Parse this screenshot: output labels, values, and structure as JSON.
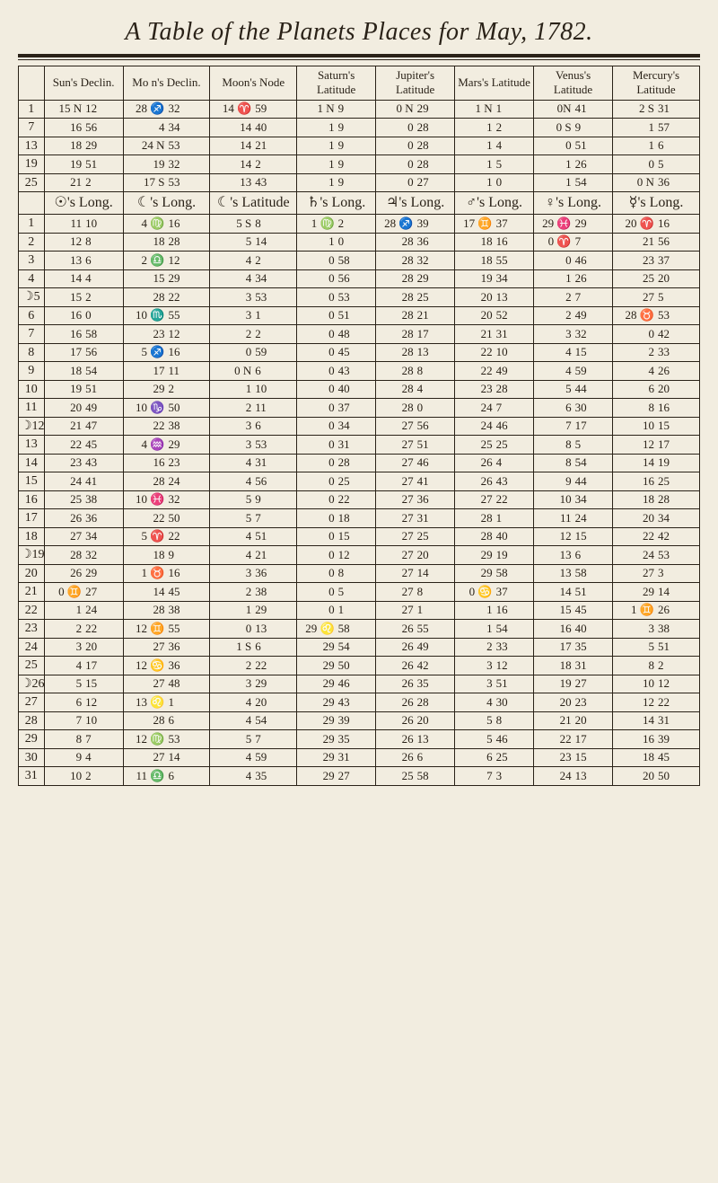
{
  "title": "A Table of the Planets Places for May, 1782.",
  "topHeaders": [
    "Sun's Declin.",
    "Mo n's Declin.",
    "Moon's Node",
    "Saturn's Latitude",
    "Jupiter's Latitude",
    "Mars's Latitude",
    "Venus's Latitude",
    "Mercury's Latitude"
  ],
  "symHeaders": [
    "☉'s Long.",
    "☾'s Long.",
    "☾'s Latitude",
    "♄'s Long.",
    "♃'s Long.",
    "♂'s Long.",
    "♀'s Long.",
    "☿'s Long."
  ],
  "upperDays": [
    "1",
    "7",
    "13",
    "19",
    "25"
  ],
  "upper": [
    [
      "15 N 12",
      "28 ♐ 32",
      "14 ♈ 59",
      "1 N 9",
      "0 N 29",
      "1 N 1",
      "0N 41",
      "2 S 31"
    ],
    [
      "16  56",
      "4  34",
      "14  40",
      "1  9",
      "0  28",
      "1  2",
      "0 S 9",
      "1  57"
    ],
    [
      "18  29",
      "24 N 53",
      "14  21",
      "1  9",
      "0  28",
      "1  4",
      "0  51",
      "1  6"
    ],
    [
      "19  51",
      "19  32",
      "14  2",
      "1  9",
      "0  28",
      "1  5",
      "1  26",
      "0  5"
    ],
    [
      "21  2",
      "17 S 53",
      "13  43",
      "1  9",
      "0  27",
      "1  0",
      "1  54",
      "0 N 36"
    ]
  ],
  "lowerDays": [
    "1",
    "2",
    "3",
    "4",
    "5",
    "6",
    "7",
    "8",
    "9",
    "10",
    "11",
    "12",
    "13",
    "14",
    "15",
    "16",
    "17",
    "18",
    "19",
    "20",
    "21",
    "22",
    "23",
    "24",
    "25",
    "26",
    "27",
    "28",
    "29",
    "30",
    "31"
  ],
  "lower": [
    [
      "11  10",
      "4 ♍ 16",
      "5 S 8",
      "1 ♍ 2",
      "28 ♐ 39",
      "17 ♊ 37",
      "29 ♓ 29",
      "20 ♈ 16"
    ],
    [
      "12  8",
      "18  28",
      "5  14",
      "1  0",
      "28  36",
      "18  16",
      "0 ♈ 7",
      "21  56"
    ],
    [
      "13  6",
      "2 ♎ 12",
      "4  2",
      "0  58",
      "28  32",
      "18  55",
      "0  46",
      "23  37"
    ],
    [
      "14  4",
      "15  29",
      "4  34",
      "0  56",
      "28  29",
      "19  34",
      "1  26",
      "25  20"
    ],
    [
      "15  2",
      "28  22",
      "3  53",
      "0  53",
      "28  25",
      "20  13",
      "2  7",
      "27  5"
    ],
    [
      "16  0",
      "10 ♏ 55",
      "3  1",
      "0  51",
      "28  21",
      "20  52",
      "2  49",
      "28 ♉ 53"
    ],
    [
      "16  58",
      "23  12",
      "2  2",
      "0  48",
      "28  17",
      "21  31",
      "3  32",
      "0  42"
    ],
    [
      "17  56",
      "5 ♐ 16",
      "0  59",
      "0  45",
      "28  13",
      "22  10",
      "4  15",
      "2  33"
    ],
    [
      "18  54",
      "17  11",
      "0 N 6",
      "0  43",
      "28  8",
      "22  49",
      "4  59",
      "4  26"
    ],
    [
      "19  51",
      "29  2",
      "1  10",
      "0  40",
      "28  4",
      "23  28",
      "5  44",
      "6  20"
    ],
    [
      "20  49",
      "10 ♑ 50",
      "2  11",
      "0  37",
      "28  0",
      "24  7",
      "6  30",
      "8  16"
    ],
    [
      "21  47",
      "22  38",
      "3  6",
      "0  34",
      "27  56",
      "24  46",
      "7  17",
      "10  15"
    ],
    [
      "22  45",
      "4 ♒ 29",
      "3  53",
      "0  31",
      "27  51",
      "25  25",
      "8  5",
      "12  17"
    ],
    [
      "23  43",
      "16  23",
      "4  31",
      "0  28",
      "27  46",
      "26  4",
      "8  54",
      "14  19"
    ],
    [
      "24  41",
      "28  24",
      "4  56",
      "0  25",
      "27  41",
      "26  43",
      "9  44",
      "16  25"
    ],
    [
      "25  38",
      "10 ♓ 32",
      "5  9",
      "0  22",
      "27  36",
      "27  22",
      "10  34",
      "18  28"
    ],
    [
      "26  36",
      "22  50",
      "5  7",
      "0  18",
      "27  31",
      "28  1",
      "11  24",
      "20  34"
    ],
    [
      "27  34",
      "5 ♈ 22",
      "4  51",
      "0  15",
      "27  25",
      "28  40",
      "12  15",
      "22  42"
    ],
    [
      "28  32",
      "18  9",
      "4  21",
      "0  12",
      "27  20",
      "29  19",
      "13  6",
      "24  53"
    ],
    [
      "26  29",
      "1 ♉ 16",
      "3  36",
      "0  8",
      "27  14",
      "29  58",
      "13  58",
      "27  3"
    ],
    [
      "0 ♊ 27",
      "14  45",
      "2  38",
      "0  5",
      "27  8",
      "0 ♋ 37",
      "14  51",
      "29  14"
    ],
    [
      "1  24",
      "28  38",
      "1  29",
      "0  1",
      "27  1",
      "1  16",
      "15  45",
      "1 ♊ 26"
    ],
    [
      "2  22",
      "12 ♊ 55",
      "0  13",
      "29 ♌ 58",
      "26  55",
      "1  54",
      "16  40",
      "3  38"
    ],
    [
      "3  20",
      "27  36",
      "1 S 6",
      "29  54",
      "26  49",
      "2  33",
      "17  35",
      "5  51"
    ],
    [
      "4  17",
      "12 ♋ 36",
      "2  22",
      "29  50",
      "26  42",
      "3  12",
      "18  31",
      "8  2"
    ],
    [
      "5  15",
      "27  48",
      "3  29",
      "29  46",
      "26  35",
      "3  51",
      "19  27",
      "10  12"
    ],
    [
      "6  12",
      "13 ♌ 1",
      "4  20",
      "29  43",
      "26  28",
      "4  30",
      "20  23",
      "12  22"
    ],
    [
      "7  10",
      "28  6",
      "4  54",
      "29  39",
      "26  20",
      "5  8",
      "21  20",
      "14  31"
    ],
    [
      "8  7",
      "12 ♍ 53",
      "5  7",
      "29  35",
      "26  13",
      "5  46",
      "22  17",
      "16  39"
    ],
    [
      "9  4",
      "27  14",
      "4  59",
      "29  31",
      "26  6",
      "6  25",
      "23  15",
      "18  45"
    ],
    [
      "10  2",
      "11 ♎ 6",
      "4  35",
      "29  27",
      "25  58",
      "7  3",
      "24  13",
      "20  50"
    ]
  ],
  "sideMarks": {
    "5": "☽",
    "12": "☽",
    "19": "☽",
    "26": "☽"
  }
}
